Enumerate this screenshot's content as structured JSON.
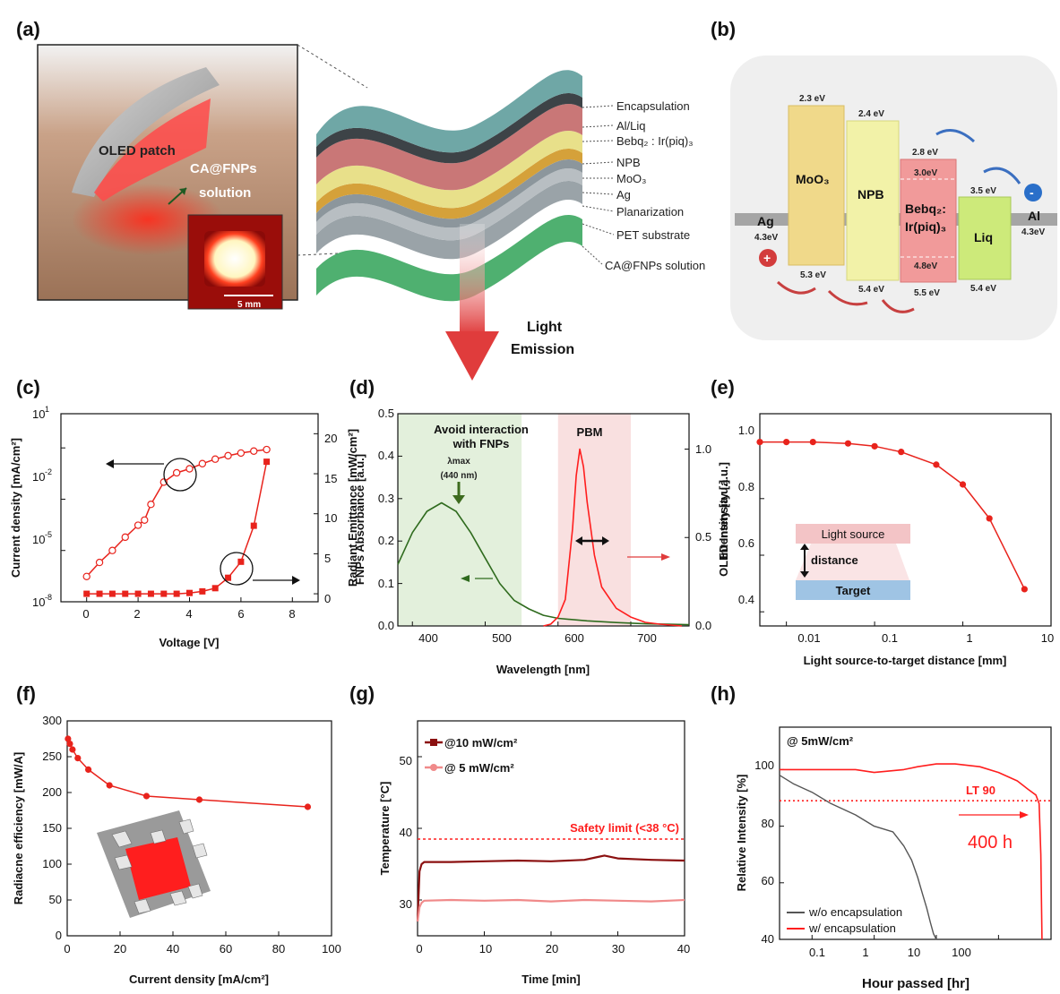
{
  "panel_labels": [
    "(a)",
    "(b)",
    "(c)",
    "(d)",
    "(e)",
    "(f)",
    "(g)",
    "(h)"
  ],
  "diagram_a": {
    "photo_label": "OLED patch",
    "solution_label_1": "CA@FNPs",
    "solution_label_2": "solution",
    "scale_bar": "5 mm",
    "layers": [
      "Encapsulation",
      "Al/Liq",
      "Bebq₂ : Ir(piq)₃",
      "NPB",
      "MoO₃",
      "Ag",
      "Planarization",
      "PET substrate",
      "CA@FNPs solution"
    ],
    "emission_1": "Light",
    "emission_2": "Emission",
    "colors": {
      "encapsulation": "#6fa7a6",
      "emitter": "#c97777",
      "npb": "#e8e08a",
      "moo3": "#d5a13a",
      "gray": "#9aa3a8",
      "solution": "#4fb070",
      "arrow": "#e03c3c"
    }
  },
  "diagram_b": {
    "ag": "Ag",
    "ag_wf": "4.3eV",
    "al": "Al",
    "al_wf": "4.3eV",
    "moo3": "MoO₃",
    "moo3_top": "2.3 eV",
    "moo3_bot": "5.3 eV",
    "npb": "NPB",
    "npb_top": "2.4 eV",
    "npb_bot": "5.4 eV",
    "bebq_1": "Bebq₂:",
    "bebq_2": "Ir(piq)₃",
    "bebq_top": "2.8 eV",
    "bebq_top2": "3.0eV",
    "bebq_bot2": "4.8eV",
    "bebq_bot": "5.5 eV",
    "liq": "Liq",
    "liq_top": "3.5 eV",
    "liq_bot": "5.4 eV",
    "plus": "+",
    "minus": "-",
    "colors": {
      "moo3": "#f0d98a",
      "npb": "#f2f2a8",
      "bebq": "#f19a9a",
      "liq": "#cdea7a",
      "hole": "#d33c3c",
      "electron": "#2a6fc9"
    }
  },
  "chart_c": {
    "xlabel": "Voltage [V]",
    "ylabel_left": "Current density [mA/cm²]",
    "ylabel_right": "Radiant Emittance [mW/cm²]",
    "x_ticks": [
      "0",
      "2",
      "4",
      "6",
      "8"
    ],
    "y_left_ticks": [
      "10",
      "10",
      "10",
      "10"
    ],
    "y_left_exps": [
      "-8",
      "-5",
      "-2",
      "1"
    ],
    "y_right_ticks": [
      "0",
      "5",
      "10",
      "15",
      "20"
    ]
  },
  "chart_d": {
    "xlabel": "Wavelength [nm]",
    "ylabel_left": "FNPs Absorbance [a.u.]",
    "ylabel_right": "OLED Intensity [a.u.]",
    "x_ticks": [
      "400",
      "500",
      "600",
      "700"
    ],
    "y_left_ticks": [
      "0.0",
      "0.1",
      "0.2",
      "0.3",
      "0.4",
      "0.5"
    ],
    "y_right_ticks": [
      "0.0",
      "0.5",
      "1.0"
    ],
    "avoid_1": "Avoid interaction",
    "avoid_2": "with FNPs",
    "lambda_1": "λmax",
    "lambda_2": "(440 nm)",
    "pbm": "PBM"
  },
  "chart_e": {
    "xlabel": "Light source-to-target distance [mm]",
    "ylabel": "Intensity [a.u.]",
    "x_ticks": [
      "0.01",
      "0.1",
      "1",
      "10"
    ],
    "y_ticks": [
      "0.4",
      "0.6",
      "0.8",
      "1.0"
    ],
    "light_source": "Light source",
    "distance": "distance",
    "target": "Target"
  },
  "chart_f": {
    "xlabel": "Current density [mA/cm²]",
    "ylabel": "Radiacne efficiency [mW/A]",
    "x_ticks": [
      "0",
      "20",
      "40",
      "60",
      "80",
      "100"
    ],
    "y_ticks": [
      "0",
      "50",
      "100",
      "150",
      "200",
      "250",
      "300"
    ]
  },
  "chart_g": {
    "xlabel": "Time [min]",
    "ylabel": "Temperature [°C]",
    "x_ticks": [
      "0",
      "10",
      "20",
      "30",
      "40"
    ],
    "y_ticks": [
      "30",
      "40",
      "50"
    ],
    "legend_1": "@10 mW/cm²",
    "legend_2": "@  5 mW/cm²",
    "safety": "Safety limit (<38 °C)"
  },
  "chart_h": {
    "xlabel": "Hour passed [hr]",
    "ylabel": "Relative Intensity [%]",
    "x_ticks": [
      "0.1",
      "1",
      "10",
      "100"
    ],
    "y_ticks": [
      "40",
      "60",
      "80",
      "100"
    ],
    "condition": "@ 5mW/cm²",
    "lt90": "LT 90",
    "hours": "400 h",
    "legend_1": "w/o encapsulation",
    "legend_2": "w/ encapsulation"
  },
  "chart_data": [
    {
      "type": "line",
      "panel": "c",
      "xlabel": "Voltage [V]",
      "xlim": [
        -1,
        9
      ],
      "series": [
        {
          "name": "Current density",
          "axis": "left-log",
          "ylim": [
            1e-08,
            1000
          ],
          "x": [
            0,
            0.5,
            1,
            1.5,
            2,
            2.25,
            2.5,
            3,
            3.5,
            4,
            4.5,
            5,
            5.5,
            6,
            6.5,
            7
          ],
          "y": [
            3e-07,
            2e-06,
            1e-05,
            6e-05,
            0.0003,
            0.0006,
            0.005,
            0.1,
            0.35,
            0.6,
            1.2,
            2.2,
            3.5,
            5,
            6.5,
            8
          ]
        },
        {
          "name": "Radiant Emittance",
          "axis": "right",
          "ylim": [
            -1,
            22.5
          ],
          "x": [
            0,
            0.5,
            1,
            1.5,
            2,
            2.5,
            3,
            3.5,
            4,
            4.5,
            5,
            5.5,
            6,
            6.5,
            7
          ],
          "y": [
            0,
            0,
            0,
            0,
            0,
            0,
            0,
            0,
            0.1,
            0.3,
            0.7,
            2,
            4,
            8.5,
            16.5
          ]
        }
      ]
    },
    {
      "type": "line",
      "panel": "d",
      "xlabel": "Wavelength [nm]",
      "xlim": [
        380,
        780
      ],
      "series": [
        {
          "name": "FNPs absorbance",
          "axis": "left",
          "ylim": [
            0,
            0.5
          ],
          "x": [
            380,
            400,
            420,
            440,
            460,
            480,
            500,
            520,
            540,
            560,
            580,
            600,
            640,
            680,
            720,
            780
          ],
          "y": [
            0.145,
            0.22,
            0.27,
            0.29,
            0.27,
            0.22,
            0.16,
            0.1,
            0.06,
            0.04,
            0.025,
            0.018,
            0.012,
            0.008,
            0.005,
            0.003
          ]
        },
        {
          "name": "OLED intensity",
          "axis": "right",
          "ylim": [
            0,
            1.2
          ],
          "x": [
            580,
            590,
            600,
            610,
            620,
            625,
            630,
            635,
            640,
            650,
            660,
            680,
            700,
            720,
            740,
            770
          ],
          "y": [
            0,
            0.01,
            0.05,
            0.15,
            0.55,
            0.85,
            1.0,
            0.9,
            0.7,
            0.4,
            0.22,
            0.1,
            0.05,
            0.02,
            0.01,
            0
          ]
        }
      ]
    },
    {
      "type": "line",
      "panel": "e",
      "xlabel": "Light source-to-target distance [mm]",
      "xscale": "log",
      "xlim": [
        0.005,
        10
      ],
      "ylim": [
        0.35,
        1.1
      ],
      "series": [
        {
          "name": "OLED intensity",
          "x": [
            0.005,
            0.01,
            0.02,
            0.05,
            0.1,
            0.2,
            0.5,
            1,
            2,
            5
          ],
          "y": [
            1.0,
            1.0,
            1.0,
            0.995,
            0.985,
            0.965,
            0.92,
            0.85,
            0.73,
            0.48
          ]
        }
      ]
    },
    {
      "type": "line",
      "panel": "f",
      "xlabel": "Current density [mA/cm²]",
      "xlim": [
        0,
        100
      ],
      "ylim": [
        0,
        300
      ],
      "series": [
        {
          "name": "Radiance efficiency",
          "x": [
            0.3,
            1,
            2,
            4,
            8,
            16,
            30,
            50,
            91
          ],
          "y": [
            275,
            268,
            260,
            248,
            232,
            210,
            195,
            190,
            180
          ]
        }
      ]
    },
    {
      "type": "line",
      "panel": "g",
      "xlabel": "Time [min]",
      "xlim": [
        0,
        40
      ],
      "ylim": [
        25,
        55
      ],
      "series": [
        {
          "name": "@10 mW/cm²",
          "x": [
            0,
            0.3,
            0.6,
            1,
            5,
            10,
            15,
            20,
            25,
            27,
            28,
            30,
            35,
            40
          ],
          "y": [
            27,
            34,
            35,
            35.3,
            35.3,
            35.4,
            35.5,
            35.4,
            35.6,
            36,
            36.2,
            35.8,
            35.6,
            35.5
          ]
        },
        {
          "name": "@  5 mW/cm²",
          "x": [
            0,
            0.3,
            0.6,
            1,
            5,
            10,
            15,
            20,
            25,
            30,
            35,
            40
          ],
          "y": [
            27,
            29,
            29.6,
            29.9,
            30,
            29.9,
            30,
            29.8,
            30,
            29.9,
            29.8,
            30
          ]
        }
      ],
      "reference_line": 38.5
    },
    {
      "type": "line",
      "panel": "h",
      "xlabel": "Hour passed [hr]",
      "xscale": "log",
      "xlim": [
        0.03,
        700
      ],
      "ylim": [
        40,
        115
      ],
      "series": [
        {
          "name": "w/o encapsulation",
          "x": [
            0.03,
            0.05,
            0.1,
            0.2,
            0.5,
            1,
            2,
            3,
            4,
            5,
            6,
            7,
            8,
            9,
            10
          ],
          "y": [
            98,
            95,
            92,
            88,
            84,
            80,
            78,
            73,
            68,
            62,
            56,
            51,
            46,
            42,
            40
          ]
        },
        {
          "name": "w/ encapsulation",
          "x": [
            0.03,
            0.1,
            0.5,
            1,
            3,
            5,
            10,
            20,
            50,
            100,
            200,
            300,
            400,
            450,
            480,
            500
          ],
          "y": [
            100,
            100,
            100,
            99,
            100,
            101,
            102,
            102,
            101,
            99,
            96,
            93,
            91,
            88,
            70,
            40
          ]
        }
      ],
      "reference_line": 89
    }
  ]
}
